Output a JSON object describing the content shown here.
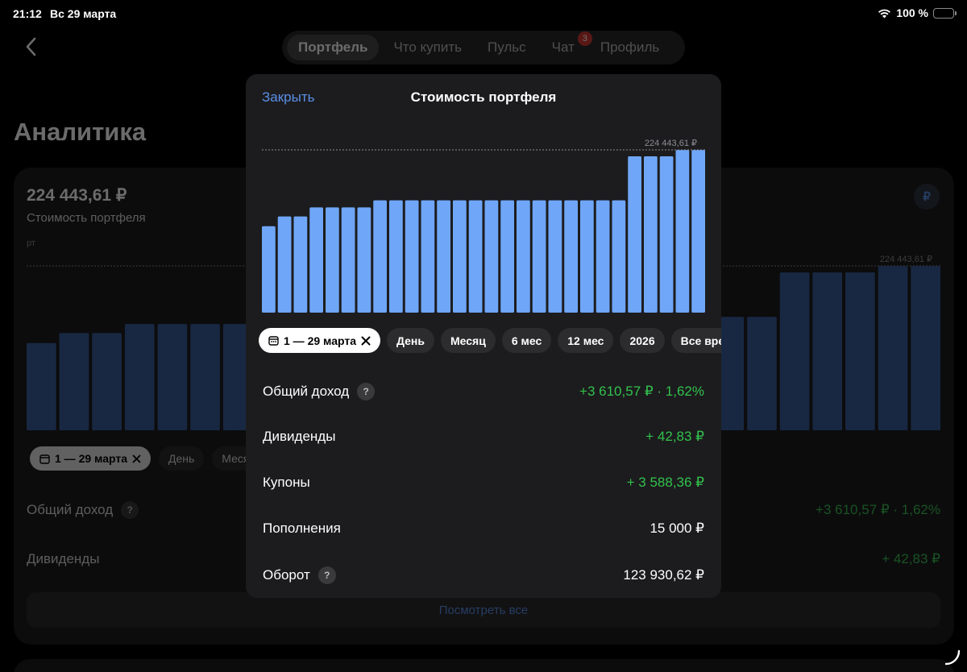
{
  "status_bar": {
    "time": "21:12",
    "date": "Вс 29 марта",
    "battery_text": "100 %",
    "battery_level": 1.0
  },
  "nav": {
    "tabs": [
      {
        "label": "Портфель",
        "active": true
      },
      {
        "label": "Что купить",
        "active": false
      },
      {
        "label": "Пульс",
        "active": false
      },
      {
        "label": "Чат",
        "active": false,
        "badge": "3"
      },
      {
        "label": "Профиль",
        "active": false
      }
    ]
  },
  "background": {
    "title": "Аналитика",
    "value": "224 443,61 ₽",
    "label": "Стоимость портфеля",
    "currency_symbol": "₽",
    "clipped_text": "рт",
    "max_label": "224 443,61 ₽",
    "pills": [
      {
        "label": "1 — 29 марта",
        "selected": true
      },
      {
        "label": "День",
        "selected": false
      },
      {
        "label": "Месяц",
        "selected": false
      }
    ],
    "rows": [
      {
        "label": "Общий доход",
        "value": "+3 610,57 ₽ · 1,62%",
        "help": true
      },
      {
        "label": "Дивиденды",
        "value": "+ 42,83 ₽",
        "help": false
      }
    ],
    "view_all": "Посмотреть все"
  },
  "modal": {
    "close_label": "Закрыть",
    "title": "Стоимость портфеля",
    "help_glyph": "?",
    "pills": [
      {
        "label": "1 — 29 марта",
        "selected": true
      },
      {
        "label": "День",
        "selected": false
      },
      {
        "label": "Месяц",
        "selected": false
      },
      {
        "label": "6 мес",
        "selected": false
      },
      {
        "label": "12 мес",
        "selected": false
      },
      {
        "label": "2026",
        "selected": false
      },
      {
        "label": "Все врем",
        "selected": false
      }
    ],
    "rows": [
      {
        "label": "Общий доход",
        "value": "+3 610,57 ₽ · 1,62%",
        "green": true,
        "help": true
      },
      {
        "label": "Дивиденды",
        "value": "+ 42,83 ₽",
        "green": true,
        "help": false
      },
      {
        "label": "Купоны",
        "value": "+ 3 588,36 ₽",
        "green": true,
        "help": false
      },
      {
        "label": "Пополнения",
        "value": "15 000 ₽",
        "green": false,
        "help": false
      },
      {
        "label": "Оборот",
        "value": "123 930,62 ₽",
        "green": false,
        "help": true
      }
    ]
  },
  "chart_data": {
    "type": "bar",
    "title": "Стоимость портфеля",
    "max_label": "224 443,61 ₽",
    "ylim": [
      0,
      224443.61
    ],
    "values": [
      205000,
      207500,
      207500,
      209800,
      209800,
      209800,
      209800,
      211600,
      211600,
      211600,
      211600,
      211600,
      211600,
      211600,
      211600,
      211600,
      211600,
      211600,
      211600,
      211600,
      211600,
      211600,
      211600,
      222800,
      222800,
      222800,
      224400,
      224400
    ],
    "grid": false,
    "legend": "none"
  },
  "colors": {
    "accent": "#5b8fe8",
    "bar_modal": "#6fa6f7",
    "bar_background": "#3a5f9e",
    "positive": "#32c24d",
    "badge": "#d43a33",
    "battery": "#f5c400"
  }
}
